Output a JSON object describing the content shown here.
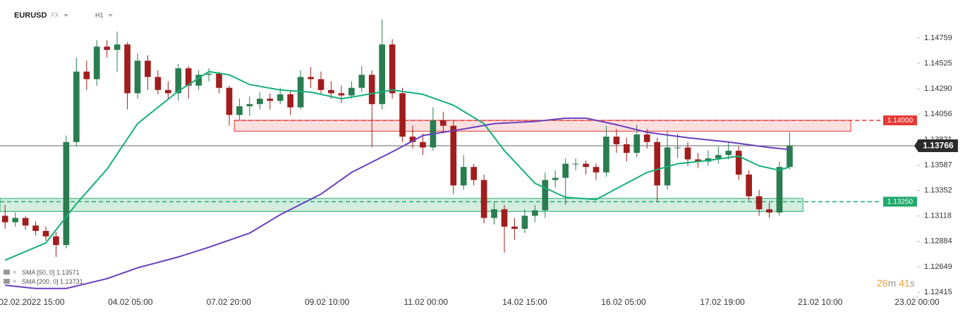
{
  "chart_data": {
    "type": "candlestick",
    "symbol": "EURUSD",
    "market": "FX",
    "timeframe": "H1",
    "up_color": "#2a7d4f",
    "down_color": "#a11d1d",
    "xlim": [
      -0.5,
      89.5
    ],
    "xticks": [
      {
        "value": 2.6,
        "label": "02.02.2022 15:00"
      },
      {
        "value": 12.3,
        "label": "04.02 05:00"
      },
      {
        "value": 21.95,
        "label": "07.02 20:00"
      },
      {
        "value": 31.6,
        "label": "09.02 10:00"
      },
      {
        "value": 41.3,
        "label": "11.02 00:00"
      },
      {
        "value": 51.0,
        "label": "14.02 15:00"
      },
      {
        "value": 60.7,
        "label": "16.02 05:00"
      },
      {
        "value": 70.4,
        "label": "17.02 19:00"
      },
      {
        "value": 80.0,
        "label": "21.02 10:00"
      },
      {
        "value": 89.5,
        "label": "23.02 00:00"
      }
    ],
    "ylim": [
      1.12383,
      1.1511
    ],
    "yticks": [
      1.14759,
      1.14525,
      {
        "value": 1.1429,
        "label": "1.14290"
      },
      1.14056,
      1.13821,
      1.13587,
      1.13352,
      1.13118,
      1.12884,
      1.12649,
      1.12415
    ],
    "open": [
      1.1312,
      1.1306,
      1.131,
      1.1303,
      1.1298,
      1.1293,
      1.1285,
      1.138,
      1.1445,
      1.1438,
      1.1468,
      1.1465,
      1.147,
      1.1425,
      1.1455,
      1.144,
      1.1428,
      1.1425,
      1.1448,
      1.1432,
      1.1442,
      1.1443,
      1.143,
      1.1405,
      1.1413,
      1.1415,
      1.142,
      1.1418,
      1.1424,
      1.1412,
      1.144,
      1.1438,
      1.1428,
      1.1425,
      1.1423,
      1.143,
      1.1442,
      1.1415,
      1.147,
      1.1425,
      1.1385,
      1.138,
      1.1375,
      1.14,
      1.1395,
      1.134,
      1.1357,
      1.1345,
      1.131,
      1.1318,
      1.1302,
      1.13,
      1.1312,
      1.1317,
      1.1345,
      1.1347,
      1.136,
      1.136,
      1.1357,
      1.1352,
      1.1385,
      1.1378,
      1.137,
      1.1387,
      1.138,
      1.134,
      1.1375,
      1.1375,
      1.1364,
      1.1362,
      1.1365,
      1.1368,
      1.1372,
      1.135,
      1.133,
      1.1318,
      1.1315,
      1.1357
    ],
    "high": [
      1.1322,
      1.1315,
      1.1312,
      1.1307,
      1.1302,
      1.1297,
      1.1386,
      1.1458,
      1.1455,
      1.1474,
      1.1474,
      1.1482,
      1.1472,
      1.1462,
      1.146,
      1.1446,
      1.1436,
      1.1452,
      1.145,
      1.1446,
      1.1448,
      1.1445,
      1.1432,
      1.142,
      1.1422,
      1.1426,
      1.1425,
      1.143,
      1.1428,
      1.1446,
      1.1449,
      1.1445,
      1.1436,
      1.1432,
      1.1436,
      1.145,
      1.1446,
      1.1493,
      1.1475,
      1.143,
      1.1395,
      1.1388,
      1.1412,
      1.1408,
      1.14,
      1.1368,
      1.136,
      1.135,
      1.1325,
      1.1322,
      1.131,
      1.1318,
      1.1322,
      1.1352,
      1.1354,
      1.1365,
      1.1365,
      1.1363,
      1.136,
      1.1395,
      1.1392,
      1.1384,
      1.1396,
      1.1392,
      1.1384,
      1.139,
      1.1388,
      1.138,
      1.137,
      1.1372,
      1.1376,
      1.138,
      1.1376,
      1.1354,
      1.1336,
      1.1324,
      1.1362,
      1.1389
    ],
    "low": [
      1.13,
      1.1302,
      1.1299,
      1.1294,
      1.1289,
      1.1274,
      1.1282,
      1.1376,
      1.1428,
      1.1432,
      1.1458,
      1.1445,
      1.141,
      1.142,
      1.1428,
      1.1424,
      1.142,
      1.1418,
      1.142,
      1.1428,
      1.1436,
      1.1425,
      1.1395,
      1.14,
      1.1404,
      1.141,
      1.141,
      1.1415,
      1.1405,
      1.141,
      1.143,
      1.1424,
      1.142,
      1.1416,
      1.142,
      1.1426,
      1.1375,
      1.141,
      1.142,
      1.138,
      1.1374,
      1.1368,
      1.1372,
      1.1388,
      1.1332,
      1.1336,
      1.134,
      1.1305,
      1.1304,
      1.1278,
      1.129,
      1.1296,
      1.1306,
      1.131,
      1.1338,
      1.1322,
      1.1354,
      1.135,
      1.1345,
      1.1348,
      1.137,
      1.1362,
      1.1366,
      1.1374,
      1.1325,
      1.1336,
      1.1365,
      1.1358,
      1.1356,
      1.1358,
      1.136,
      1.1364,
      1.1345,
      1.1326,
      1.1312,
      1.131,
      1.1312,
      1.1355
    ],
    "close": [
      1.1306,
      1.131,
      1.1303,
      1.1298,
      1.1293,
      1.1285,
      1.138,
      1.1445,
      1.1438,
      1.1468,
      1.1465,
      1.147,
      1.1425,
      1.1455,
      1.144,
      1.1428,
      1.1425,
      1.1448,
      1.1432,
      1.1442,
      1.1443,
      1.143,
      1.1405,
      1.1413,
      1.1415,
      1.142,
      1.1418,
      1.1424,
      1.1412,
      1.144,
      1.1438,
      1.1428,
      1.1425,
      1.1423,
      1.143,
      1.1442,
      1.1415,
      1.147,
      1.1425,
      1.1385,
      1.138,
      1.1375,
      1.14,
      1.1395,
      1.134,
      1.1357,
      1.1345,
      1.131,
      1.1318,
      1.1302,
      1.13,
      1.1312,
      1.1317,
      1.1345,
      1.1347,
      1.136,
      1.136,
      1.1357,
      1.1352,
      1.1385,
      1.1378,
      1.137,
      1.1387,
      1.138,
      1.134,
      1.1375,
      1.1375,
      1.1364,
      1.1362,
      1.1365,
      1.1368,
      1.1372,
      1.135,
      1.133,
      1.1318,
      1.1315,
      1.1357,
      1.13766
    ],
    "series": [
      {
        "name": "SMA [50, 0]",
        "color": "#13b07a",
        "x": [
          0,
          4,
          7,
          10,
          13,
          17,
          20,
          22,
          24,
          27,
          30,
          33,
          35,
          38,
          41,
          44,
          47,
          49,
          52,
          55,
          58,
          60,
          63,
          66,
          69,
          72,
          74,
          76,
          77
        ],
        "values": [
          1.1271,
          1.1287,
          1.1323,
          1.1355,
          1.1397,
          1.1427,
          1.1445,
          1.1442,
          1.1433,
          1.1428,
          1.1426,
          1.142,
          1.1423,
          1.1428,
          1.1424,
          1.1414,
          1.1397,
          1.1372,
          1.1342,
          1.1329,
          1.1327,
          1.1337,
          1.1352,
          1.136,
          1.1363,
          1.1367,
          1.1358,
          1.1354,
          1.13571
        ]
      },
      {
        "name": "SMA [200, 0]",
        "color": "#6a3fc0",
        "x": [
          0,
          3,
          6,
          10,
          13,
          17,
          20,
          24,
          27,
          31,
          34,
          38,
          41,
          45,
          48,
          52,
          55,
          57,
          60,
          63,
          67,
          71,
          75,
          77
        ],
        "values": [
          1.1248,
          1.1245,
          1.1245,
          1.1254,
          1.1264,
          1.1274,
          1.1283,
          1.1296,
          1.1313,
          1.1332,
          1.1352,
          1.1371,
          1.1386,
          1.1392,
          1.1397,
          1.1399,
          1.1402,
          1.1402,
          1.1396,
          1.1389,
          1.1384,
          1.138,
          1.1375,
          1.13731
        ]
      }
    ],
    "zones": [
      {
        "color": "#e53935",
        "fill": "rgba(239,83,80,0.18)",
        "xlim": [
          22.5,
          83.0
        ],
        "ylim": [
          1.139,
          1.14
        ],
        "level": {
          "value": 1.14,
          "label": "1.14000"
        }
      },
      {
        "color": "#1faa6b",
        "fill": "rgba(38,166,104,0.2)",
        "xlim": [
          -0.5,
          78.3
        ],
        "ylim": [
          1.1316,
          1.1328
        ],
        "level": {
          "value": 1.1325,
          "label": "1.13250"
        }
      }
    ],
    "last_price": 1.13766,
    "timer": {
      "minutes": "26",
      "minutes_unit": "m",
      "seconds": "41",
      "seconds_unit": "s"
    }
  }
}
